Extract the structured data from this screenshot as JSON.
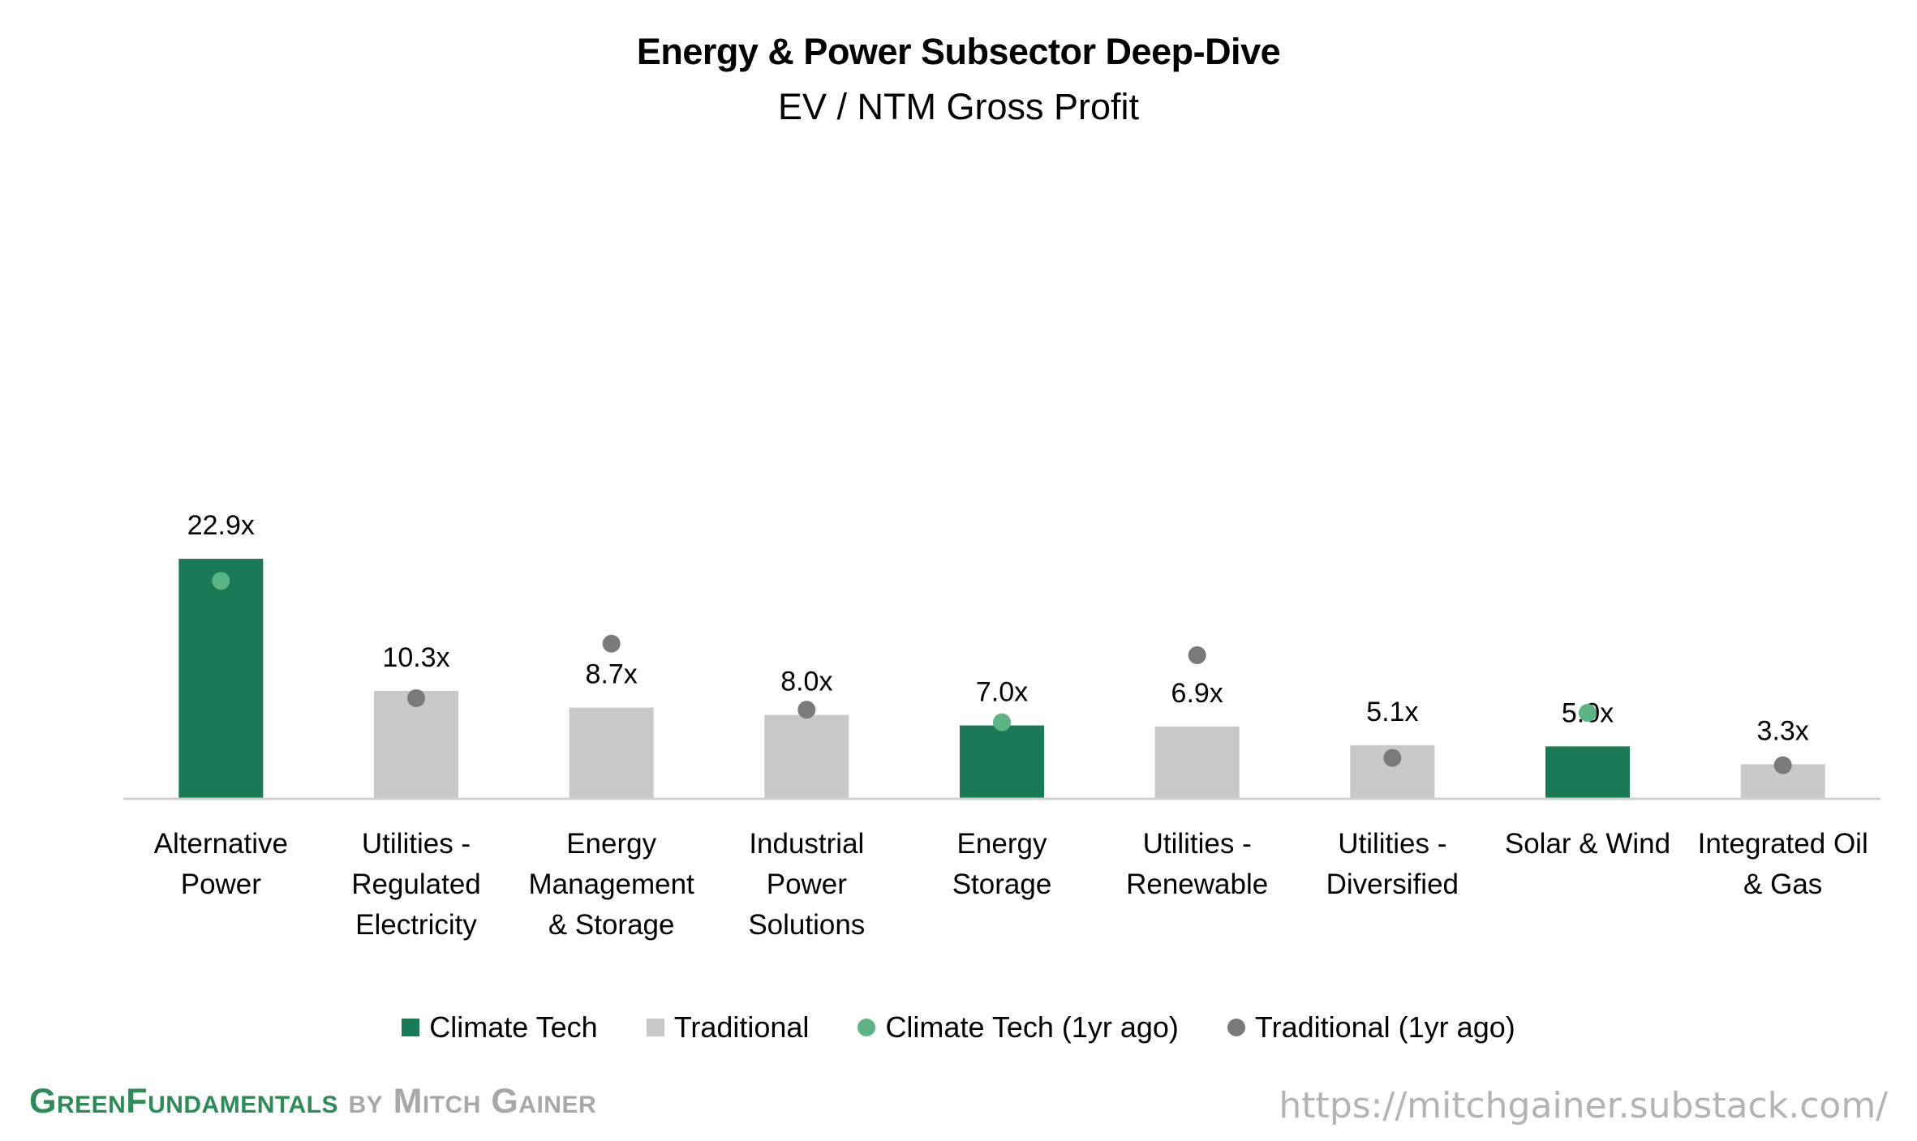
{
  "chart_data": {
    "type": "bar",
    "title": "Energy & Power Subsector Deep-Dive",
    "subtitle": "EV / NTM Gross Profit",
    "categories": [
      [
        "Alternative",
        "Power"
      ],
      [
        "Utilities -",
        "Regulated",
        "Electricity"
      ],
      [
        "Energy",
        "Management",
        "& Storage"
      ],
      [
        "Industrial",
        "Power",
        "Solutions"
      ],
      [
        "Energy",
        "Storage"
      ],
      [
        "Utilities -",
        "Renewable"
      ],
      [
        "Utilities -",
        "Diversified"
      ],
      [
        "Solar & Wind"
      ],
      [
        "Integrated Oil",
        "& Gas"
      ]
    ],
    "values": [
      22.9,
      10.3,
      8.7,
      8.0,
      7.0,
      6.9,
      5.1,
      5.0,
      3.3
    ],
    "value_labels": [
      "22.9x",
      "10.3x",
      "8.7x",
      "8.0x",
      "7.0x",
      "6.9x",
      "5.1x",
      "5.0x",
      "3.3x"
    ],
    "group": [
      "Climate Tech",
      "Traditional",
      "Traditional",
      "Traditional",
      "Climate Tech",
      "Traditional",
      "Traditional",
      "Climate Tech",
      "Traditional"
    ],
    "one_year_ago": [
      20.8,
      9.6,
      14.8,
      8.5,
      7.3,
      13.7,
      3.9,
      8.2,
      3.2
    ],
    "ylim": [
      0,
      65
    ],
    "grid": false,
    "legend_position": "bottom",
    "series": [
      {
        "name": "Climate Tech",
        "kind": "bar"
      },
      {
        "name": "Traditional",
        "kind": "bar"
      },
      {
        "name": "Climate Tech (1yr ago)",
        "kind": "dot"
      },
      {
        "name": "Traditional (1yr ago)",
        "kind": "dot"
      }
    ],
    "colors": {
      "Climate Tech": "#1a7a55",
      "Traditional": "#c8c8c8",
      "Climate Tech (1yr ago)": "#5cb383",
      "Traditional (1yr ago)": "#7a7a7a",
      "axis": "#d0d0d0"
    }
  },
  "legend": {
    "items": [
      {
        "label": "Climate Tech",
        "shape": "square",
        "color": "#1a7a55"
      },
      {
        "label": "Traditional",
        "shape": "square",
        "color": "#c8c8c8"
      },
      {
        "label": "Climate Tech (1yr ago)",
        "shape": "dot",
        "color": "#5cb383"
      },
      {
        "label": "Traditional (1yr ago)",
        "shape": "dot",
        "color": "#7a7a7a"
      }
    ]
  },
  "footer": {
    "brand_part1": "GreenFundamentals",
    "brand_part2": "by Mitch Gainer",
    "url": "https://mitchgainer.substack.com/"
  }
}
